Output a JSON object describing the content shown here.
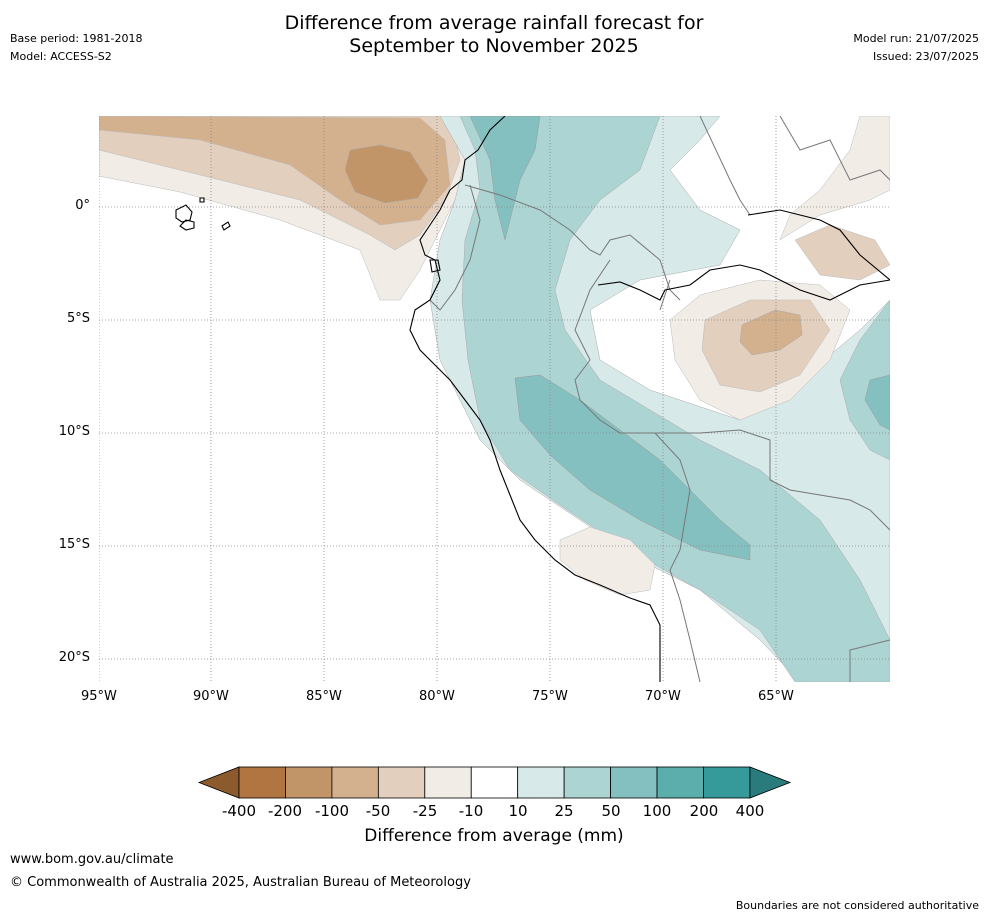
{
  "title_line1": "Difference from average rainfall forecast for",
  "title_line2": "September to November 2025",
  "meta_left": {
    "base_period": "Base period: 1981-2018",
    "model": "Model: ACCESS-S2"
  },
  "meta_right": {
    "model_run": "Model run: 21/07/2025",
    "issued": "Issued: 23/07/2025"
  },
  "axes": {
    "longitude_ticks": [
      "95°W",
      "90°W",
      "85°W",
      "80°W",
      "75°W",
      "70°W",
      "65°W"
    ],
    "latitude_ticks": [
      "0°",
      "5°S",
      "10°S",
      "15°S",
      "20°S"
    ]
  },
  "colorbar": {
    "title": "Difference from average (mm)",
    "labels": [
      "-400",
      "-200",
      "-100",
      "-50",
      "-25",
      "-10",
      "10",
      "25",
      "50",
      "100",
      "200",
      "400"
    ],
    "colors": [
      "#8c5a2c",
      "#b07540",
      "#c29569",
      "#d3b08e",
      "#e3cfbd",
      "#f1ece6",
      "#ffffff",
      "#d7e9e8",
      "#acd4d3",
      "#84c0bf",
      "#5baeac",
      "#36999a",
      "#2a7b7c"
    ]
  },
  "footer": {
    "url": "www.bom.gov.au/climate",
    "copyright": "© Commonwealth of Australia 2025, Australian Bureau of Meteorology",
    "note": "Boundaries are not considered authoritative"
  }
}
